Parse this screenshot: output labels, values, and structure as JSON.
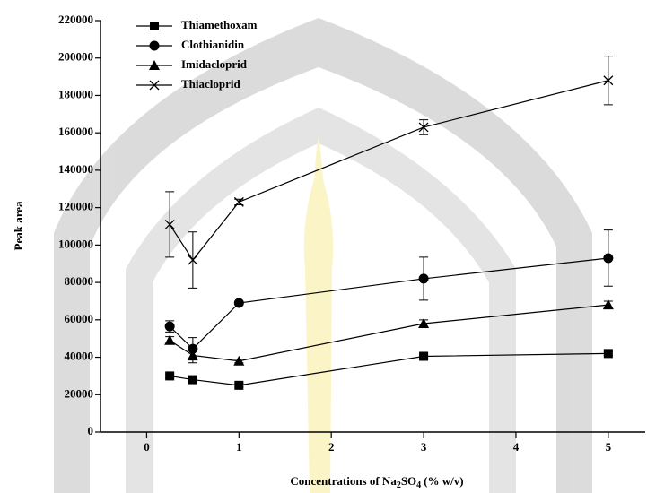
{
  "chart_data": {
    "type": "line",
    "x_label_parts": [
      "Concentrations of Na",
      "2",
      "SO",
      "4",
      "(% w/v)"
    ],
    "y_label": "Peak area",
    "x": [
      0.25,
      0.5,
      1,
      3,
      5
    ],
    "series": [
      {
        "name": "Thiamethoxam",
        "color": "#000000",
        "marker": "square",
        "values": [
          30000,
          28000,
          25000,
          40500,
          42000
        ],
        "errors": [
          1000,
          1000,
          1000,
          1000,
          1000
        ]
      },
      {
        "name": "Clothianidin",
        "color": "#000000",
        "marker": "circle",
        "values": [
          56500,
          44500,
          69000,
          82000,
          93000
        ],
        "errors": [
          3000,
          6000,
          1000,
          11500,
          15000
        ]
      },
      {
        "name": "Imidacloprid",
        "color": "#000000",
        "marker": "triangle",
        "values": [
          49000,
          41000,
          38000,
          58000,
          68000
        ],
        "errors": [
          2000,
          4000,
          1000,
          2000,
          2000
        ]
      },
      {
        "name": "Thiacloprid",
        "color": "#000000",
        "marker": "cross",
        "values": [
          111000,
          92000,
          123000,
          163000,
          188000
        ],
        "errors": [
          17500,
          15000,
          1500,
          4000,
          13000
        ]
      }
    ],
    "xlim": [
      -0.5,
      5.4
    ],
    "xticks": [
      0,
      1,
      2,
      3,
      4,
      5
    ],
    "ylim": [
      0,
      220000
    ],
    "yticks": [
      0,
      20000,
      40000,
      60000,
      80000,
      100000,
      120000,
      140000,
      160000,
      180000,
      200000,
      220000
    ],
    "legend": "upper-left"
  }
}
